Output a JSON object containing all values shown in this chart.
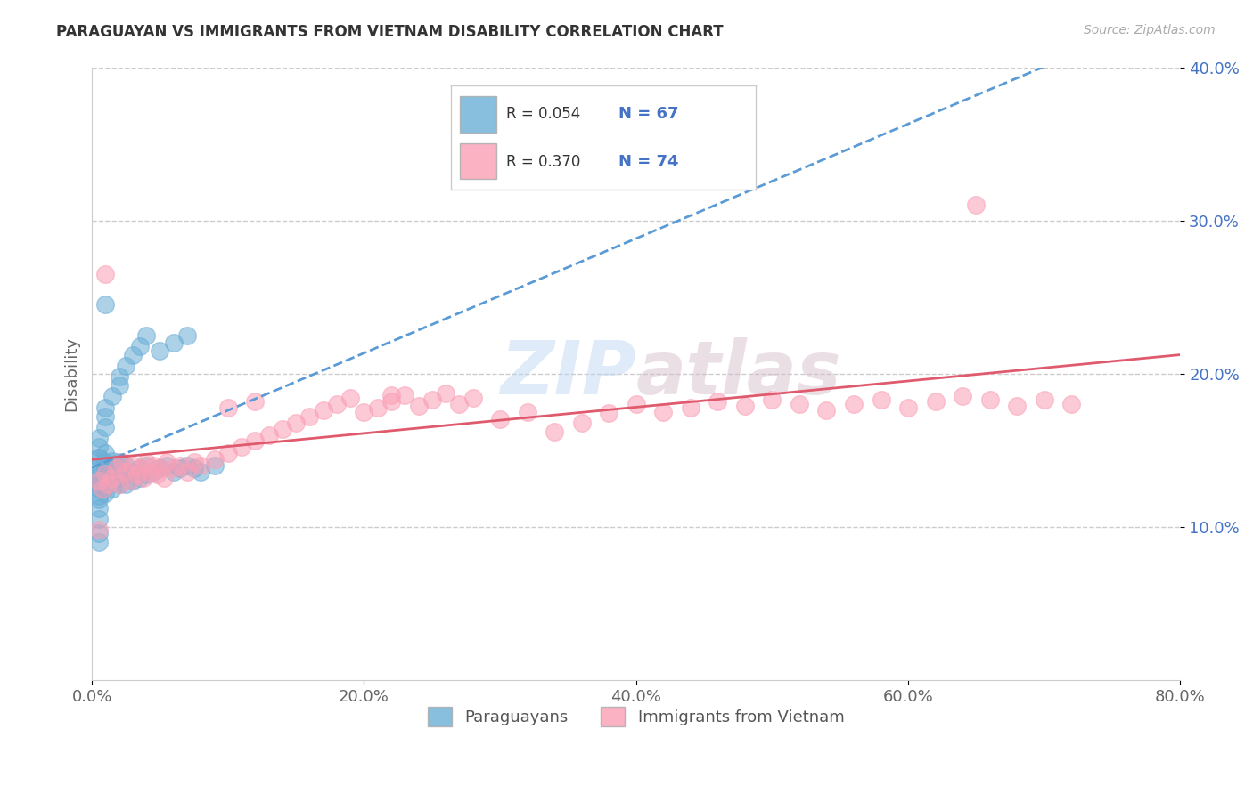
{
  "title": "PARAGUAYAN VS IMMIGRANTS FROM VIETNAM DISABILITY CORRELATION CHART",
  "source": "Source: ZipAtlas.com",
  "ylabel": "Disability",
  "xlim": [
    0,
    0.8
  ],
  "ylim": [
    0,
    0.4
  ],
  "xticks": [
    0.0,
    0.2,
    0.4,
    0.6,
    0.8
  ],
  "xtick_labels": [
    "0.0%",
    "20.0%",
    "40.0%",
    "60.0%",
    "80.0%"
  ],
  "yticks": [
    0.1,
    0.2,
    0.3,
    0.4
  ],
  "ytick_labels": [
    "10.0%",
    "20.0%",
    "30.0%",
    "40.0%"
  ],
  "paraguayan_color": "#6baed6",
  "vietnam_color": "#fa9fb5",
  "paraguayan_line_color": "#5b9bd5",
  "vietnam_line_color": "#e05a6e",
  "paraguayan_R": 0.054,
  "paraguayan_N": 67,
  "vietnam_R": 0.37,
  "vietnam_N": 74,
  "legend_label_1": "Paraguayans",
  "legend_label_2": "Immigrants from Vietnam",
  "watermark_zip": "ZIP",
  "watermark_atlas": "atlas",
  "paraguayan_x": [
    0.005,
    0.005,
    0.005,
    0.005,
    0.005,
    0.005,
    0.005,
    0.005,
    0.01,
    0.01,
    0.01,
    0.01,
    0.01,
    0.01,
    0.01,
    0.01,
    0.01,
    0.015,
    0.015,
    0.015,
    0.015,
    0.015,
    0.02,
    0.02,
    0.02,
    0.02,
    0.02,
    0.025,
    0.025,
    0.025,
    0.03,
    0.03,
    0.035,
    0.035,
    0.04,
    0.04,
    0.045,
    0.05,
    0.055,
    0.06,
    0.065,
    0.07,
    0.075,
    0.08,
    0.09,
    0.01,
    0.005,
    0.005,
    0.005,
    0.005,
    0.005,
    0.005,
    0.005,
    0.005,
    0.01,
    0.01,
    0.01,
    0.015,
    0.02,
    0.02,
    0.025,
    0.03,
    0.035,
    0.04,
    0.05,
    0.06,
    0.07
  ],
  "paraguayan_y": [
    0.13,
    0.135,
    0.125,
    0.14,
    0.12,
    0.145,
    0.128,
    0.133,
    0.132,
    0.138,
    0.128,
    0.142,
    0.136,
    0.13,
    0.126,
    0.148,
    0.122,
    0.135,
    0.14,
    0.125,
    0.143,
    0.13,
    0.138,
    0.132,
    0.142,
    0.128,
    0.136,
    0.134,
    0.14,
    0.128,
    0.136,
    0.13,
    0.138,
    0.132,
    0.14,
    0.134,
    0.136,
    0.138,
    0.14,
    0.136,
    0.138,
    0.14,
    0.138,
    0.136,
    0.14,
    0.245,
    0.09,
    0.096,
    0.105,
    0.112,
    0.118,
    0.145,
    0.152,
    0.158,
    0.165,
    0.172,
    0.178,
    0.185,
    0.192,
    0.198,
    0.205,
    0.212,
    0.218,
    0.225,
    0.215,
    0.22,
    0.225
  ],
  "vietnam_x": [
    0.005,
    0.008,
    0.01,
    0.012,
    0.015,
    0.018,
    0.02,
    0.022,
    0.025,
    0.028,
    0.03,
    0.033,
    0.035,
    0.038,
    0.04,
    0.043,
    0.045,
    0.048,
    0.05,
    0.053,
    0.055,
    0.06,
    0.065,
    0.07,
    0.075,
    0.08,
    0.09,
    0.1,
    0.11,
    0.12,
    0.13,
    0.14,
    0.15,
    0.16,
    0.17,
    0.18,
    0.19,
    0.2,
    0.21,
    0.22,
    0.23,
    0.24,
    0.25,
    0.26,
    0.27,
    0.28,
    0.3,
    0.32,
    0.34,
    0.36,
    0.38,
    0.4,
    0.42,
    0.44,
    0.46,
    0.48,
    0.5,
    0.52,
    0.54,
    0.56,
    0.58,
    0.6,
    0.62,
    0.64,
    0.66,
    0.68,
    0.7,
    0.72,
    0.1,
    0.12,
    0.22,
    0.005,
    0.01,
    0.65
  ],
  "vietnam_y": [
    0.13,
    0.125,
    0.135,
    0.128,
    0.132,
    0.138,
    0.128,
    0.142,
    0.136,
    0.13,
    0.14,
    0.134,
    0.138,
    0.132,
    0.142,
    0.136,
    0.14,
    0.134,
    0.138,
    0.132,
    0.142,
    0.138,
    0.14,
    0.136,
    0.142,
    0.14,
    0.144,
    0.148,
    0.152,
    0.156,
    0.16,
    0.164,
    0.168,
    0.172,
    0.176,
    0.18,
    0.184,
    0.175,
    0.178,
    0.182,
    0.186,
    0.179,
    0.183,
    0.187,
    0.18,
    0.184,
    0.17,
    0.175,
    0.162,
    0.168,
    0.174,
    0.18,
    0.175,
    0.178,
    0.182,
    0.179,
    0.183,
    0.18,
    0.176,
    0.18,
    0.183,
    0.178,
    0.182,
    0.185,
    0.183,
    0.179,
    0.183,
    0.18,
    0.178,
    0.182,
    0.186,
    0.098,
    0.265,
    0.31
  ]
}
